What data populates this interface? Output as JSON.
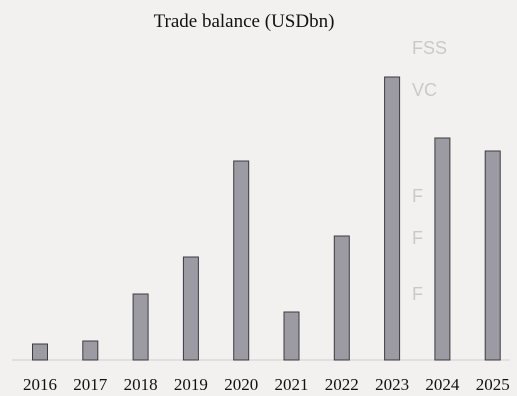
{
  "chart_data": {
    "type": "bar",
    "title": "Trade balance (USDbn)",
    "xlabel": "",
    "ylabel": "",
    "categories": [
      "2016",
      "2017",
      "2018",
      "2019",
      "2020",
      "2021",
      "2022",
      "2023",
      "2024",
      "2025"
    ],
    "values": [
      1.6,
      1.9,
      6.6,
      10.3,
      19.9,
      4.8,
      12.4,
      28.3,
      22.2,
      20.9
    ],
    "ylim": [
      0,
      30
    ],
    "grid": false,
    "legend": "none",
    "colors": {
      "bar_fill": "#9c9ba3",
      "bar_stroke": "#3b3b42",
      "text": "#111111",
      "axis": "#cfcfcf"
    }
  }
}
